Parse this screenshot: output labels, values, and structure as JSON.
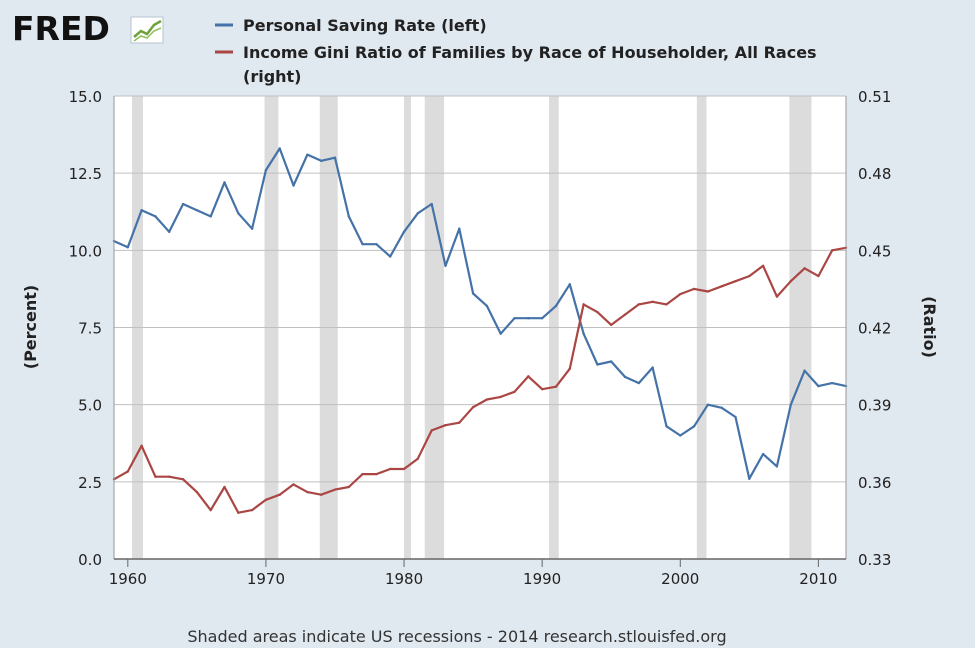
{
  "logo": {
    "text": "FRED"
  },
  "legend": [
    {
      "label": "Personal Saving Rate (left)",
      "color": "#4572a7"
    },
    {
      "label": "Income Gini Ratio of Families by Race of Householder, All Races",
      "label_cont": "(right)",
      "color": "#aa4643"
    }
  ],
  "footer": "Shaded areas indicate US recessions - 2014 research.stlouisfed.org",
  "chart_data": {
    "type": "line",
    "xlim": [
      1959,
      2012
    ],
    "x_ticks": [
      "1960",
      "1970",
      "1980",
      "1990",
      "2000",
      "2010"
    ],
    "y_left": {
      "label": "(Percent)",
      "range": [
        0,
        15
      ],
      "ticks": [
        "0.0",
        "2.5",
        "5.0",
        "7.5",
        "10.0",
        "12.5",
        "15.0"
      ]
    },
    "y_right": {
      "label": "(Ratio)",
      "range": [
        0.33,
        0.51
      ],
      "ticks": [
        "0.33",
        "0.36",
        "0.39",
        "0.42",
        "0.45",
        "0.48",
        "0.51"
      ]
    },
    "grid": true,
    "recessions": [
      [
        1960.3,
        1961.1
      ],
      [
        1969.9,
        1970.9
      ],
      [
        1973.9,
        1975.2
      ],
      [
        1980.0,
        1980.5
      ],
      [
        1981.5,
        1982.9
      ],
      [
        1990.5,
        1991.2
      ],
      [
        2001.2,
        2001.9
      ],
      [
        2007.9,
        2009.5
      ]
    ],
    "series": [
      {
        "name": "Personal Saving Rate (left)",
        "axis": "left",
        "color": "#4572a7",
        "x": [
          1959,
          1960,
          1961,
          1962,
          1963,
          1964,
          1965,
          1966,
          1967,
          1968,
          1969,
          1970,
          1971,
          1972,
          1973,
          1974,
          1975,
          1976,
          1977,
          1978,
          1979,
          1980,
          1981,
          1982,
          1983,
          1984,
          1985,
          1986,
          1987,
          1988,
          1989,
          1990,
          1991,
          1992,
          1993,
          1994,
          1995,
          1996,
          1997,
          1998,
          1999,
          2000,
          2001,
          2002,
          2003,
          2004,
          2005,
          2006,
          2007,
          2008,
          2009,
          2010,
          2011,
          2012
        ],
        "values": [
          10.3,
          10.1,
          11.3,
          11.1,
          10.6,
          11.5,
          11.3,
          11.1,
          12.2,
          11.2,
          10.7,
          12.6,
          13.3,
          12.1,
          13.1,
          12.9,
          13.0,
          11.1,
          10.2,
          10.2,
          9.8,
          10.6,
          11.2,
          11.5,
          9.5,
          10.7,
          8.6,
          8.2,
          7.3,
          7.8,
          7.8,
          7.8,
          8.2,
          8.9,
          7.3,
          6.3,
          6.4,
          5.9,
          5.7,
          6.2,
          4.3,
          4.0,
          4.3,
          5.0,
          4.9,
          4.6,
          2.6,
          3.4,
          3.0,
          5.0,
          6.1,
          5.6,
          5.7,
          5.6
        ]
      },
      {
        "name": "Income Gini Ratio of Families by Race of Householder, All Races (right)",
        "axis": "right",
        "color": "#aa4643",
        "x": [
          1959,
          1960,
          1961,
          1962,
          1963,
          1964,
          1965,
          1966,
          1967,
          1968,
          1969,
          1970,
          1971,
          1972,
          1973,
          1974,
          1975,
          1976,
          1977,
          1978,
          1979,
          1980,
          1981,
          1982,
          1983,
          1984,
          1985,
          1986,
          1987,
          1988,
          1989,
          1990,
          1991,
          1992,
          1993,
          1994,
          1995,
          1996,
          1997,
          1998,
          1999,
          2000,
          2001,
          2002,
          2003,
          2004,
          2005,
          2006,
          2007,
          2008,
          2009,
          2010,
          2011,
          2012
        ],
        "values": [
          0.361,
          0.364,
          0.374,
          0.362,
          0.362,
          0.361,
          0.356,
          0.349,
          0.358,
          0.348,
          0.349,
          0.353,
          0.355,
          0.359,
          0.356,
          0.355,
          0.357,
          0.358,
          0.363,
          0.363,
          0.365,
          0.365,
          0.369,
          0.38,
          0.382,
          0.383,
          0.389,
          0.392,
          0.393,
          0.395,
          0.401,
          0.396,
          0.397,
          0.404,
          0.429,
          0.426,
          0.421,
          0.425,
          0.429,
          0.43,
          0.429,
          0.433,
          0.435,
          0.434,
          0.436,
          0.438,
          0.44,
          0.444,
          0.432,
          0.438,
          0.443,
          0.44,
          0.45,
          0.451
        ]
      }
    ]
  }
}
